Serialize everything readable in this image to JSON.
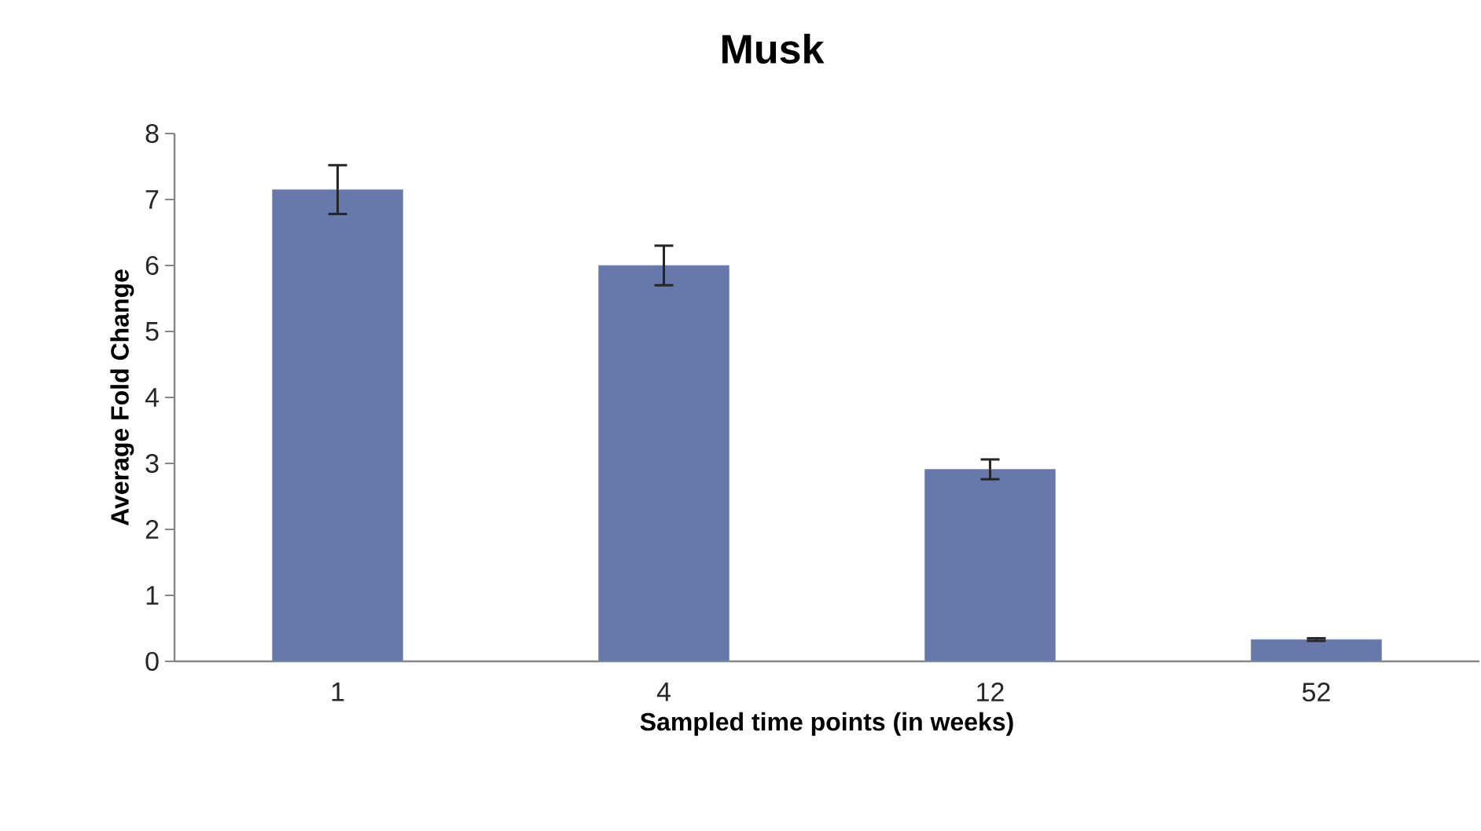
{
  "chart_data": {
    "type": "bar",
    "title": "Musk",
    "xlabel": "Sampled time points (in weeks)",
    "ylabel": "Average Fold Change",
    "categories": [
      "1",
      "4",
      "12",
      "52"
    ],
    "values": [
      7.15,
      6.0,
      2.91,
      0.33
    ],
    "errors": [
      0.37,
      0.3,
      0.15,
      0.02
    ],
    "color": "#6779ab",
    "ylim": [
      0,
      8
    ],
    "yticks": [
      0,
      1,
      2,
      3,
      4,
      5,
      6,
      7,
      8
    ],
    "grid": false
  }
}
